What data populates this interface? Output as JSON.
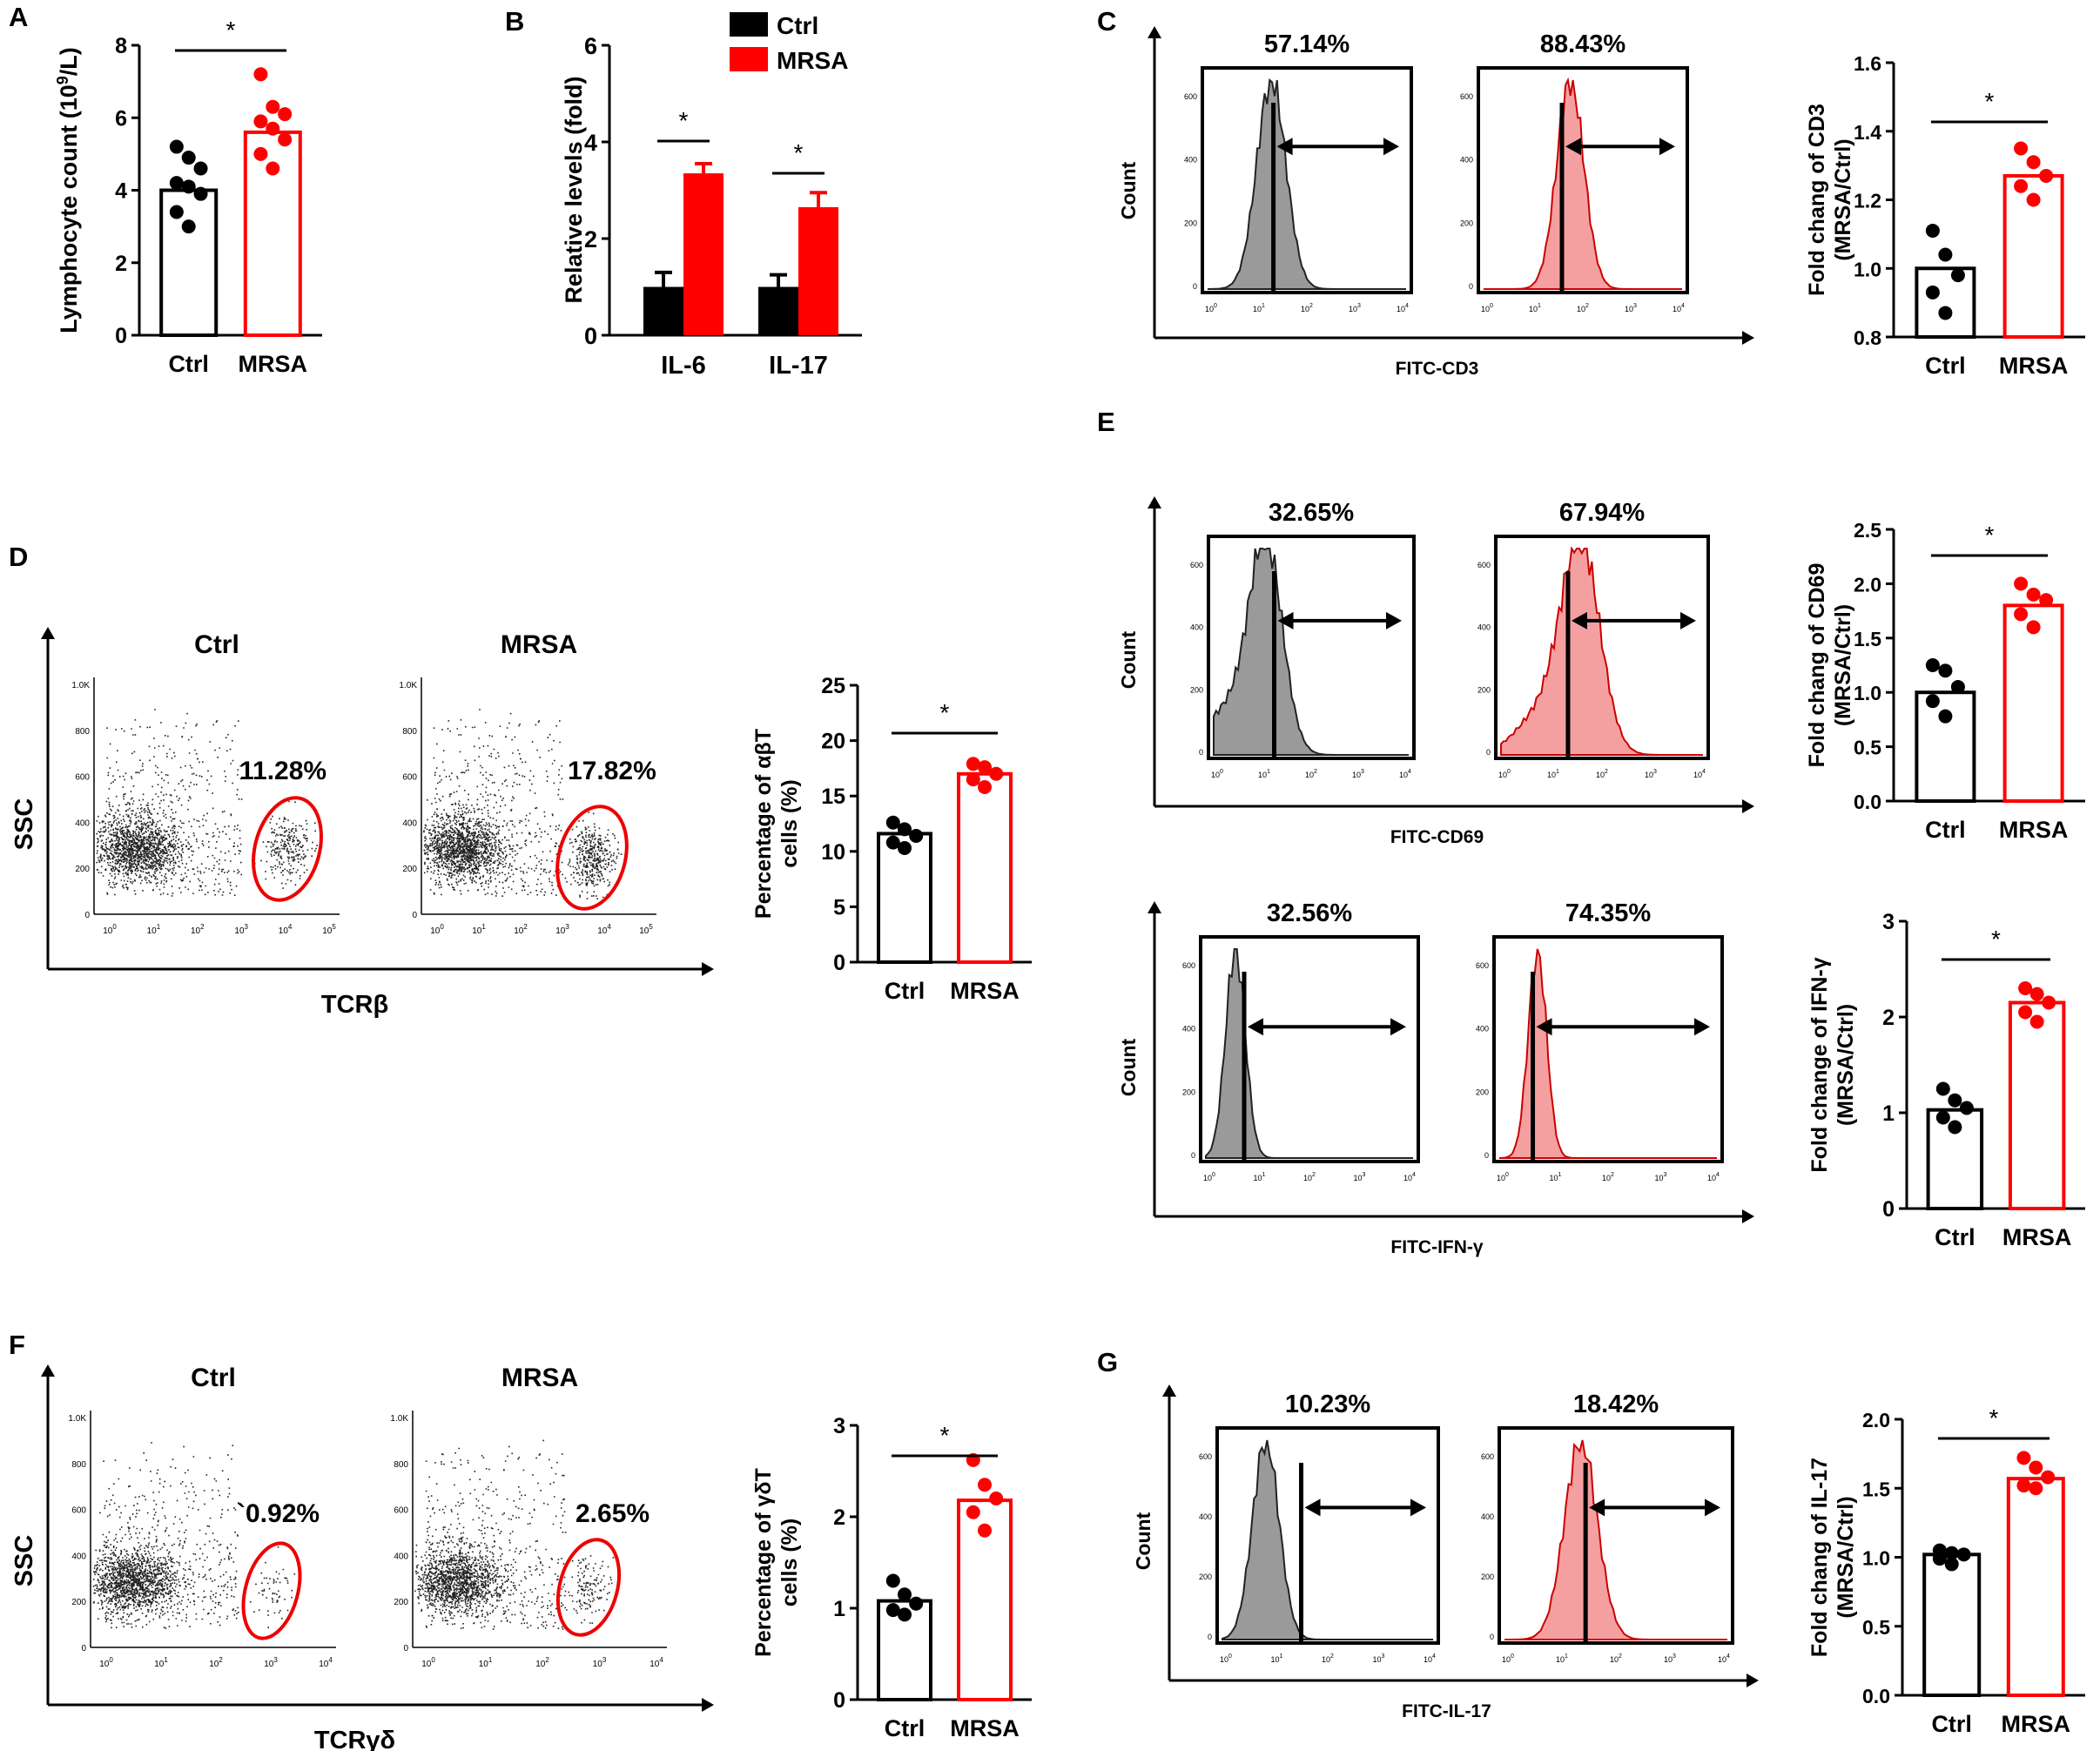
{
  "figure": {
    "panel_letters": [
      "A",
      "B",
      "C",
      "D",
      "E",
      "F",
      "G"
    ],
    "colors": {
      "ctrl": "#000000",
      "mrsa": "#ff0000",
      "ctrl_fill": "#9a9a9a",
      "mrsa_fill": "#f4a0a0",
      "ctrl_bar": "#000000",
      "mrsa_bar": "#ff0000"
    }
  },
  "chart_data": [
    {
      "id": "A",
      "type": "bar",
      "title": "",
      "categories": [
        "Ctrl",
        "MRSA"
      ],
      "values": [
        4.0,
        5.6
      ],
      "points": [
        [
          5.2,
          4.9,
          4.6,
          4.2,
          4.1,
          3.9,
          3.4,
          3.0
        ],
        [
          7.2,
          6.3,
          6.1,
          5.9,
          5.7,
          5.4,
          5.0,
          4.6
        ]
      ],
      "ylabel_parts": [
        "Lymphocyte count (10",
        "9",
        "/L)"
      ],
      "ylim": [
        0,
        8
      ],
      "yticks": [
        "0",
        "2",
        "4",
        "6",
        "8"
      ],
      "significance": "*"
    },
    {
      "id": "B",
      "type": "bar",
      "categories": [
        "IL-6",
        "IL-17"
      ],
      "series": [
        {
          "name": "Ctrl",
          "values": [
            1.0,
            1.0
          ],
          "errors": [
            0.3,
            0.25
          ]
        },
        {
          "name": "MRSA",
          "values": [
            3.35,
            2.65
          ],
          "errors": [
            0.2,
            0.3
          ]
        }
      ],
      "ylabel": "Relative levels (fold)",
      "ylim": [
        0,
        6
      ],
      "yticks": [
        "0",
        "2",
        "4",
        "6"
      ],
      "significance": [
        "*",
        "*"
      ]
    },
    {
      "id": "C-hist",
      "type": "histogram",
      "xlabel": "FITC-CD3",
      "ylabel": "Count",
      "panels": [
        {
          "group": "Ctrl",
          "percent": "57.14%"
        },
        {
          "group": "MRSA",
          "percent": "88.43%"
        }
      ],
      "yticks": [
        "0",
        "200",
        "400",
        "600"
      ],
      "xticks": [
        "10",
        "10",
        "10",
        "10",
        "10"
      ],
      "xtick_exp": [
        "0",
        "1",
        "2",
        "3",
        "4"
      ]
    },
    {
      "id": "C",
      "type": "bar",
      "categories": [
        "Ctrl",
        "MRSA"
      ],
      "values": [
        1.0,
        1.27
      ],
      "points": [
        [
          1.11,
          1.04,
          0.98,
          0.93,
          0.87
        ],
        [
          1.35,
          1.31,
          1.27,
          1.24,
          1.2
        ]
      ],
      "ylabel": "Fold chang of CD3",
      "ylabel2": "(MRSA/Ctrl)",
      "ylim": [
        0.8,
        1.6
      ],
      "yticks": [
        "0.8",
        "1.0",
        "1.2",
        "1.4",
        "1.6"
      ],
      "significance": "*"
    },
    {
      "id": "D-scatter",
      "type": "scatter",
      "xlabel": "TCRβ",
      "ylabel": "SSC",
      "panels": [
        {
          "group": "Ctrl",
          "percent": "11.28%"
        },
        {
          "group": "MRSA",
          "percent": "17.82%"
        }
      ],
      "yticks": [
        "0",
        "200",
        "400",
        "600",
        "800",
        "1.0K"
      ],
      "xticks": [
        "10",
        "10",
        "10",
        "10",
        "10",
        "10"
      ],
      "xtick_exp": [
        "0",
        "1",
        "2",
        "3",
        "4",
        "5"
      ]
    },
    {
      "id": "D",
      "type": "bar",
      "categories": [
        "Ctrl",
        "MRSA"
      ],
      "values": [
        11.6,
        17.0
      ],
      "points": [
        [
          12.6,
          12.0,
          11.4,
          10.8,
          10.3
        ],
        [
          17.9,
          17.6,
          17.0,
          16.5,
          15.8
        ]
      ],
      "ylabel": "Percentage of αβT",
      "ylabel2": "cells (%)",
      "ylim": [
        0,
        25
      ],
      "yticks": [
        "0",
        "5",
        "10",
        "15",
        "20",
        "25"
      ],
      "significance": "*"
    },
    {
      "id": "E1-hist",
      "type": "histogram",
      "xlabel": "FITC-CD69",
      "ylabel": "Count",
      "panels": [
        {
          "group": "Ctrl",
          "percent": "32.65%"
        },
        {
          "group": "MRSA",
          "percent": "67.94%"
        }
      ],
      "yticks": [
        "0",
        "200",
        "400",
        "600"
      ],
      "xticks": [
        "10",
        "10",
        "10",
        "10",
        "10"
      ],
      "xtick_exp": [
        "0",
        "1",
        "2",
        "3",
        "4"
      ]
    },
    {
      "id": "E1",
      "type": "bar",
      "categories": [
        "Ctrl",
        "MRSA"
      ],
      "values": [
        1.0,
        1.8
      ],
      "points": [
        [
          1.25,
          1.2,
          1.05,
          0.92,
          0.78
        ],
        [
          2.0,
          1.9,
          1.85,
          1.72,
          1.6
        ]
      ],
      "ylabel": "Fold chang of CD69",
      "ylabel2": "(MRSA/Ctrl)",
      "ylim": [
        0,
        2.5
      ],
      "yticks": [
        "0.0",
        "0.5",
        "1.0",
        "1.5",
        "2.0",
        "2.5"
      ],
      "significance": "*"
    },
    {
      "id": "E2-hist",
      "type": "histogram",
      "xlabel": "FITC-IFN-γ",
      "ylabel": "Count",
      "panels": [
        {
          "group": "Ctrl",
          "percent": "32.56%"
        },
        {
          "group": "MRSA",
          "percent": "74.35%"
        }
      ],
      "yticks": [
        "0",
        "200",
        "400",
        "600"
      ],
      "xticks": [
        "10",
        "10",
        "10",
        "10",
        "10"
      ],
      "xtick_exp": [
        "0",
        "1",
        "2",
        "3",
        "4"
      ]
    },
    {
      "id": "E2",
      "type": "bar",
      "categories": [
        "Ctrl",
        "MRSA"
      ],
      "values": [
        1.03,
        2.15
      ],
      "points": [
        [
          1.25,
          1.13,
          1.05,
          0.95,
          0.85
        ],
        [
          2.3,
          2.24,
          2.15,
          2.05,
          1.95
        ]
      ],
      "ylabel": "Fold change of IFN-γ",
      "ylabel2": "(MRSA/Ctrl)",
      "ylim": [
        0,
        3
      ],
      "yticks": [
        "0",
        "1",
        "2",
        "3"
      ],
      "significance": "*"
    },
    {
      "id": "F-scatter",
      "type": "scatter",
      "xlabel": "TCRγδ",
      "ylabel": "SSC",
      "panels": [
        {
          "group": "Ctrl",
          "percent": "`0.92%"
        },
        {
          "group": "MRSA",
          "percent": "2.65%"
        }
      ],
      "yticks": [
        "0",
        "200",
        "400",
        "600",
        "800",
        "1.0K"
      ],
      "xticks": [
        "10",
        "10",
        "10",
        "10",
        "10"
      ],
      "xtick_exp": [
        "0",
        "1",
        "2",
        "3",
        "4"
      ]
    },
    {
      "id": "F",
      "type": "bar",
      "categories": [
        "Ctrl",
        "MRSA"
      ],
      "values": [
        1.08,
        2.18
      ],
      "points": [
        [
          1.3,
          1.15,
          1.05,
          0.98,
          0.93
        ],
        [
          2.62,
          2.35,
          2.2,
          2.05,
          1.85
        ]
      ],
      "ylabel": "Percentage of γδT",
      "ylabel2": "cells (%)",
      "ylim": [
        0,
        3
      ],
      "yticks": [
        "0",
        "1",
        "2",
        "3"
      ],
      "significance": "*"
    },
    {
      "id": "G-hist",
      "type": "histogram",
      "xlabel": "FITC-IL-17",
      "ylabel": "Count",
      "panels": [
        {
          "group": "Ctrl",
          "percent": "10.23%"
        },
        {
          "group": "MRSA",
          "percent": "18.42%"
        }
      ],
      "yticks": [
        "0",
        "200",
        "400",
        "600"
      ],
      "xticks": [
        "10",
        "10",
        "10",
        "10",
        "10"
      ],
      "xtick_exp": [
        "0",
        "1",
        "2",
        "3",
        "4"
      ]
    },
    {
      "id": "G",
      "type": "bar",
      "categories": [
        "Ctrl",
        "MRSA"
      ],
      "values": [
        1.02,
        1.57
      ],
      "points": [
        [
          1.05,
          1.03,
          1.02,
          0.99,
          0.95
        ],
        [
          1.72,
          1.65,
          1.58,
          1.52,
          1.5
        ]
      ],
      "ylabel": "Fold chang of IL-17",
      "ylabel2": "(MRSA/Ctrl)",
      "ylim": [
        0,
        2
      ],
      "yticks": [
        "0.0",
        "0.5",
        "1.0",
        "1.5",
        "2.0"
      ],
      "significance": "*"
    }
  ]
}
